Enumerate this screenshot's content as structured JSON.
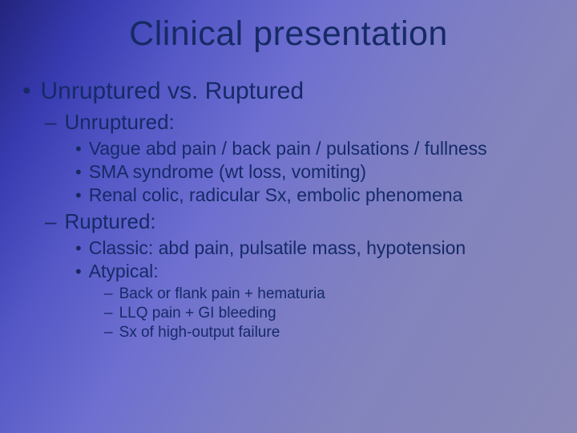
{
  "colors": {
    "text": "#152a67",
    "gradient_from": "#23247d",
    "gradient_to": "#8a89b7"
  },
  "title": "Clinical presentation",
  "l1": {
    "heading": "Unruptured vs. Ruptured",
    "sections": [
      {
        "label": "Unruptured:",
        "points": [
          "Vague abd pain / back pain / pulsations / fullness",
          "SMA syndrome (wt loss, vomiting)",
          "Renal colic, radicular Sx, embolic phenomena"
        ]
      },
      {
        "label": "Ruptured:",
        "points": [
          "Classic: abd pain, pulsatile mass, hypotension",
          "Atypical:"
        ],
        "subpoints_of_last": [
          "Back or flank pain + hematuria",
          "LLQ pain + GI bleeding",
          "Sx of high-output failure"
        ]
      }
    ]
  }
}
